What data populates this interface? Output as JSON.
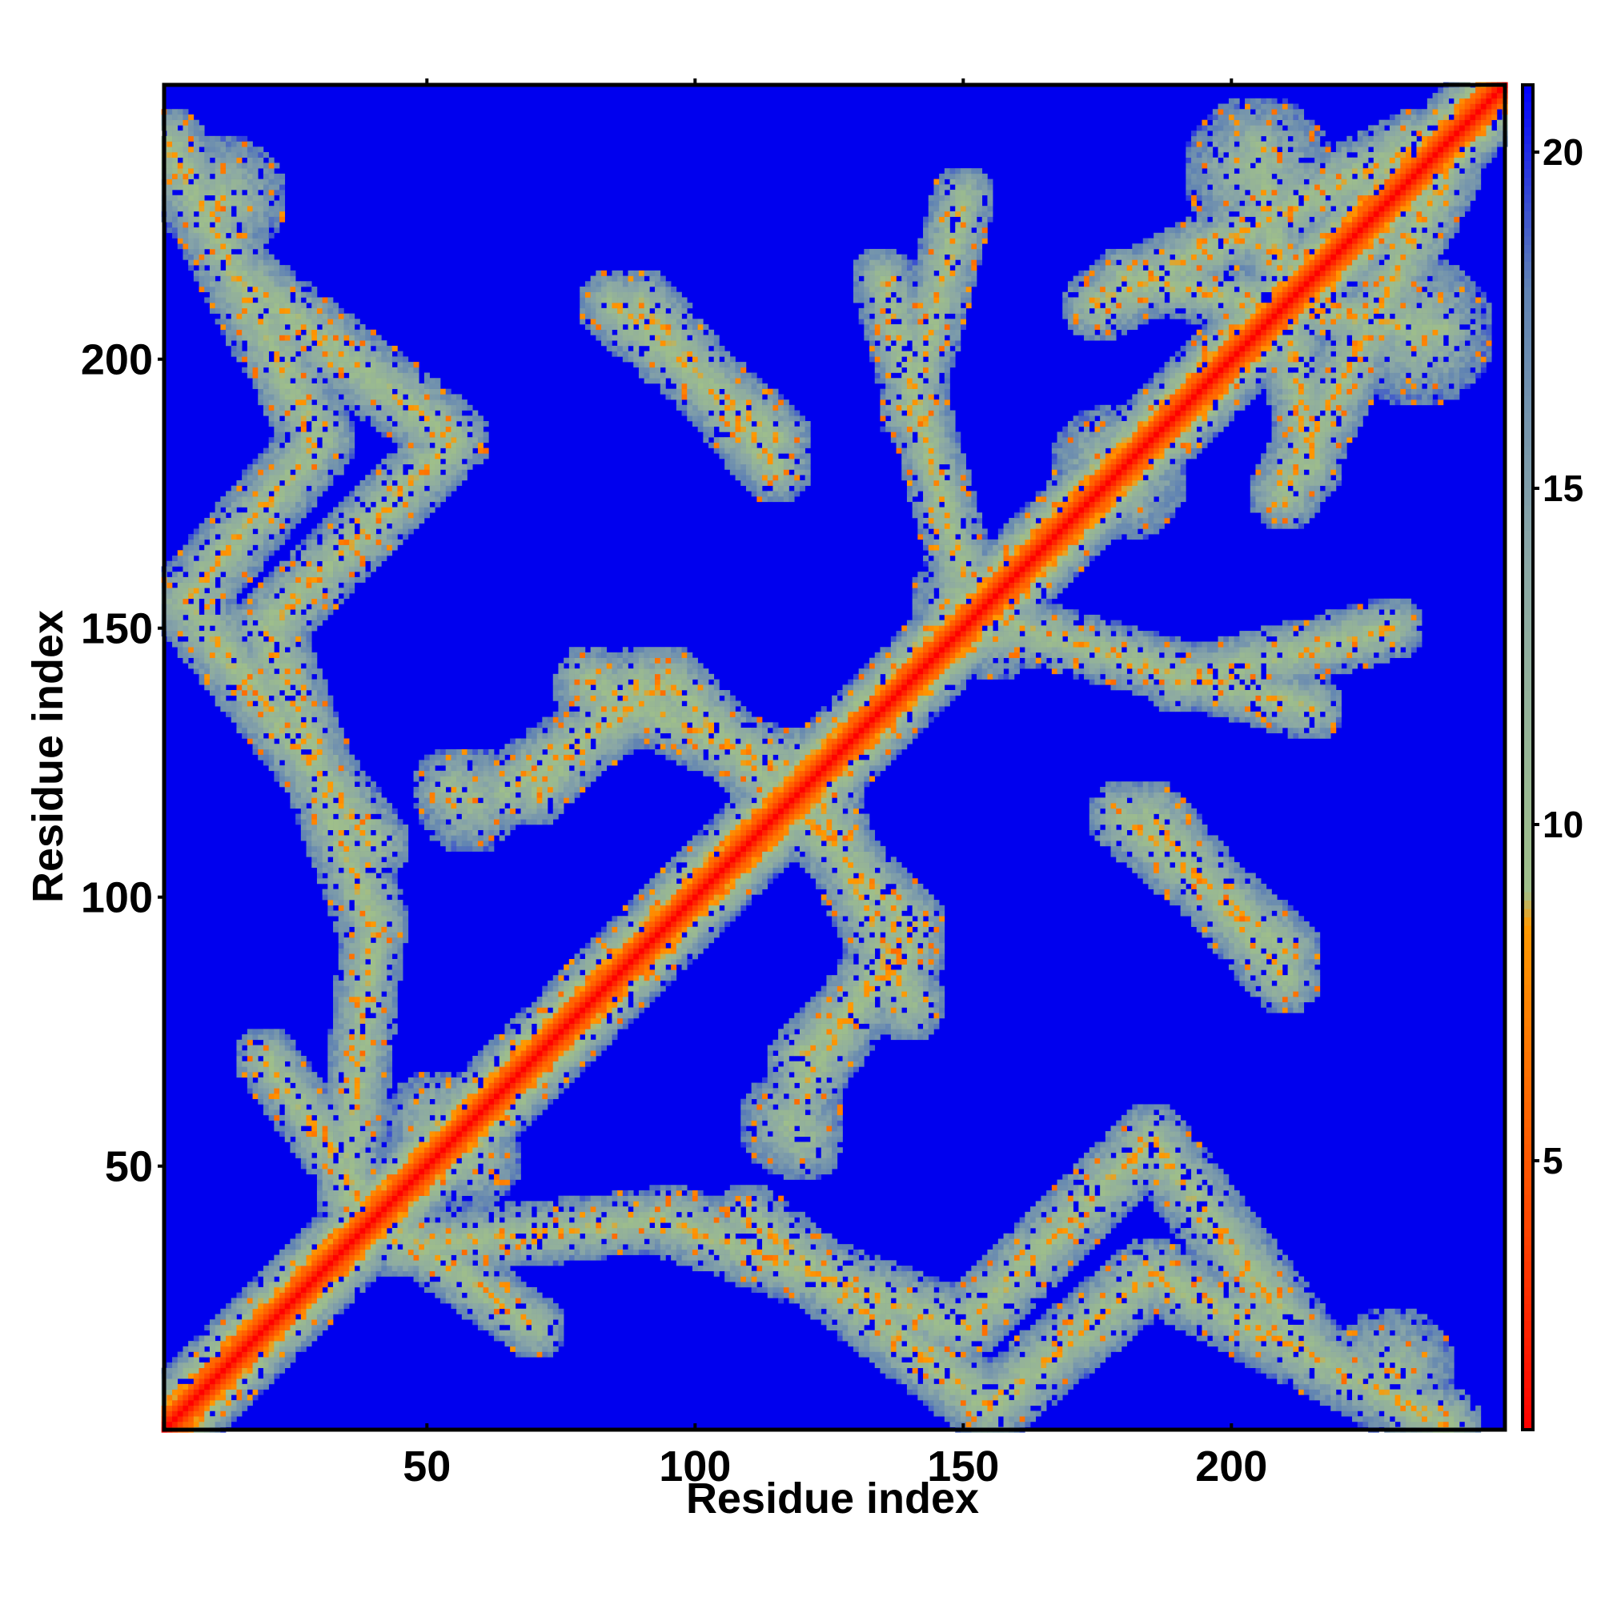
{
  "chart_data": {
    "type": "heatmap",
    "title": "",
    "xlabel": "Residue index",
    "ylabel": "Residue index",
    "xlim": [
      1,
      251
    ],
    "ylim": [
      1,
      251
    ],
    "x_ticks": [
      50,
      100,
      150,
      200
    ],
    "y_ticks": [
      50,
      100,
      150,
      200
    ],
    "n_residues": 251,
    "symmetric": true,
    "colorbar": {
      "min": 1,
      "max": 21,
      "ticks": [
        5,
        10,
        15,
        20
      ],
      "stops": [
        {
          "value": 1,
          "color": "#ff0000"
        },
        {
          "value": 4,
          "color": "#ff4400"
        },
        {
          "value": 8.5,
          "color": "#ff9900"
        },
        {
          "value": 9,
          "color": "#9fbf8a"
        },
        {
          "value": 14,
          "color": "#8aa7a6"
        },
        {
          "value": 18,
          "color": "#5f82b3"
        },
        {
          "value": 21,
          "color": "#0000ff"
        }
      ],
      "background_color": "#0000ee"
    },
    "diagonal": {
      "value_at_zero": 1,
      "band_width": 4
    },
    "contact_bands": [
      {
        "start": [
          2,
          240
        ],
        "end": [
          30,
          185
        ],
        "width": 7
      },
      {
        "start": [
          30,
          185
        ],
        "end": [
          5,
          155
        ],
        "width": 7
      },
      {
        "start": [
          5,
          155
        ],
        "end": [
          40,
          110
        ],
        "width": 7
      },
      {
        "start": [
          90,
          210
        ],
        "end": [
          115,
          180
        ],
        "width": 7
      },
      {
        "start": [
          80,
          140
        ],
        "end": [
          125,
          120
        ],
        "width": 7
      },
      {
        "start": [
          70,
          120
        ],
        "end": [
          90,
          140
        ],
        "width": 7
      },
      {
        "start": [
          115,
          120
        ],
        "end": [
          140,
          95
        ],
        "width": 7
      },
      {
        "start": [
          140,
          95
        ],
        "end": [
          120,
          65
        ],
        "width": 7
      },
      {
        "start": [
          20,
          70
        ],
        "end": [
          45,
          35
        ],
        "width": 6
      },
      {
        "start": [
          45,
          35
        ],
        "end": [
          95,
          40
        ],
        "width": 6
      },
      {
        "start": [
          95,
          40
        ],
        "end": [
          150,
          20
        ],
        "width": 7
      },
      {
        "start": [
          150,
          20
        ],
        "end": [
          185,
          55
        ],
        "width": 7
      },
      {
        "start": [
          185,
          55
        ],
        "end": [
          215,
          15
        ],
        "width": 7
      },
      {
        "start": [
          185,
          115
        ],
        "end": [
          210,
          85
        ],
        "width": 7
      },
      {
        "start": [
          190,
          140
        ],
        "end": [
          230,
          150
        ],
        "width": 6
      },
      {
        "start": [
          135,
          215
        ],
        "end": [
          150,
          160
        ],
        "width": 6
      },
      {
        "start": [
          175,
          210
        ],
        "end": [
          235,
          240
        ],
        "width": 7
      },
      {
        "start": [
          205,
          240
        ],
        "end": [
          215,
          180
        ],
        "width": 6
      }
    ],
    "contact_blobs": [
      {
        "center": [
          12,
          230
        ],
        "radius": 12
      },
      {
        "center": [
          55,
          120
        ],
        "radius": 8
      },
      {
        "center": [
          118,
          58
        ],
        "radius": 10
      },
      {
        "center": [
          230,
          12
        ],
        "radius": 12
      },
      {
        "center": [
          235,
          205
        ],
        "radius": 14
      },
      {
        "center": [
          180,
          178
        ],
        "radius": 12
      },
      {
        "center": [
          150,
          155
        ],
        "radius": 10
      },
      {
        "center": [
          52,
          58
        ],
        "radius": 10
      }
    ]
  }
}
